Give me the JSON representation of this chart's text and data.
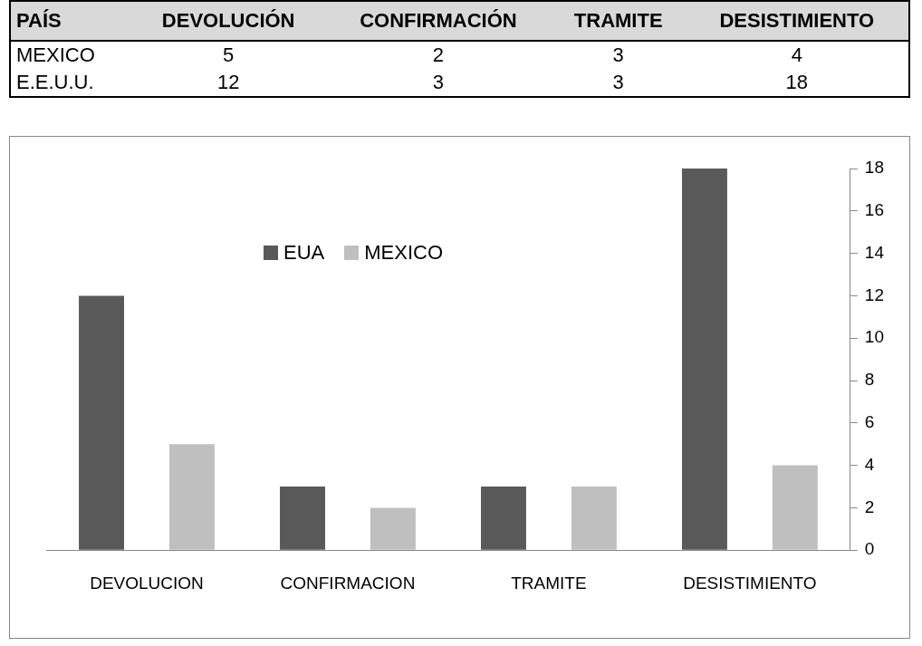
{
  "chart_data": {
    "type": "bar",
    "categories": [
      "DEVOLUCION",
      "CONFIRMACION",
      "TRAMITE",
      "DESISTIMIENTO"
    ],
    "series": [
      {
        "name": "EUA",
        "color": "#595959",
        "values": [
          12,
          3,
          3,
          18
        ]
      },
      {
        "name": "MEXICO",
        "color": "#bfbfbf",
        "values": [
          5,
          2,
          3,
          4
        ]
      }
    ],
    "ylim": [
      0,
      18
    ],
    "yticks": [
      0,
      2,
      4,
      6,
      8,
      10,
      12,
      14,
      16,
      18
    ],
    "grid": false,
    "legend": "top left",
    "data_labels": true,
    "annotations": [
      "PAÍS",
      "DEVOLUCIÓN",
      "CONFIRMACIÓN",
      "TRAMITE",
      "DESISTIMIENTO",
      "MEXICO",
      "E.E.U.U."
    ]
  }
}
